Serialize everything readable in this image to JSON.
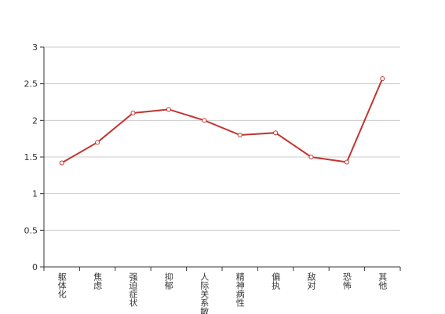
{
  "chart_data": {
    "type": "line",
    "categories": [
      "躯体化",
      "焦虑",
      "强迫症状",
      "抑郁",
      "人际关系敏感",
      "精神病性",
      "偏执",
      "敌对",
      "恐怖",
      "其他"
    ],
    "values": [
      1.42,
      1.7,
      2.1,
      2.15,
      2.0,
      1.8,
      1.83,
      1.5,
      1.43,
      2.57
    ],
    "color": "#c23531",
    "ylim": [
      0,
      3
    ],
    "yticks": [
      0,
      0.5,
      1,
      1.5,
      2,
      2.5,
      3
    ],
    "grid": true
  }
}
